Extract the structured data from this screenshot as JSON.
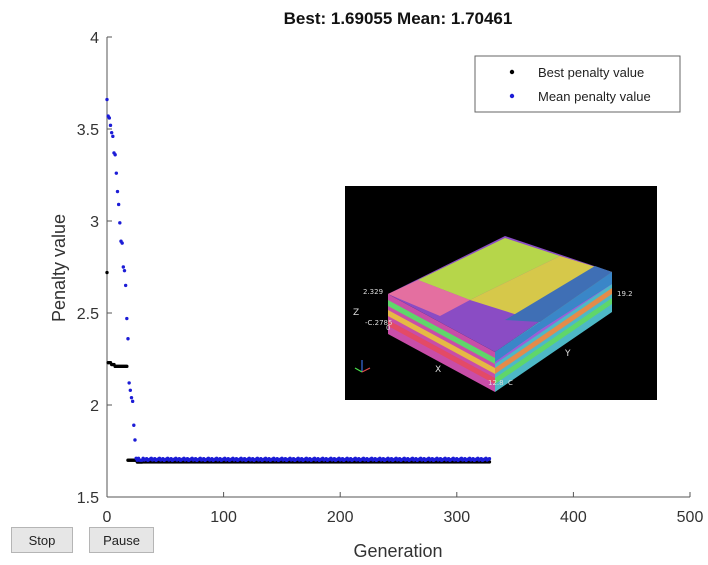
{
  "chart_data": {
    "type": "scatter",
    "title": "Best: 1.69055 Mean: 1.70461",
    "xlabel": "Generation",
    "ylabel": "Penalty value",
    "xlim": [
      0,
      500
    ],
    "ylim": [
      1.5,
      4
    ],
    "xticks": [
      "0",
      "100",
      "200",
      "300",
      "400",
      "500"
    ],
    "yticks": [
      "1.5",
      "2",
      "2.5",
      "3",
      "3.5",
      "4"
    ],
    "legend_position": "top-right",
    "series": [
      {
        "name": "Best penalty value",
        "color": "#000000",
        "points": [
          [
            0,
            2.72
          ],
          [
            1,
            2.23
          ],
          [
            2,
            2.23
          ],
          [
            3,
            2.23
          ],
          [
            4,
            2.22
          ],
          [
            5,
            2.22
          ],
          [
            6,
            2.22
          ],
          [
            7,
            2.21
          ],
          [
            8,
            2.21
          ],
          [
            9,
            2.21
          ],
          [
            10,
            2.21
          ],
          [
            11,
            2.21
          ],
          [
            12,
            2.21
          ],
          [
            13,
            2.21
          ],
          [
            14,
            2.21
          ],
          [
            15,
            2.21
          ],
          [
            16,
            2.21
          ],
          [
            17,
            2.21
          ],
          [
            18,
            1.7
          ],
          [
            19,
            1.7
          ],
          [
            20,
            1.7
          ],
          [
            21,
            1.7
          ],
          [
            22,
            1.7
          ],
          [
            23,
            1.7
          ],
          [
            24,
            1.7
          ],
          [
            25,
            1.7
          ],
          [
            26,
            1.69
          ],
          [
            27,
            1.69
          ],
          [
            28,
            1.69
          ],
          [
            29,
            1.69
          ],
          [
            30,
            1.69
          ]
        ],
        "plateau": {
          "from": 30,
          "to": 328,
          "value": 1.6906
        }
      },
      {
        "name": "Mean penalty value",
        "color": "#1c1cd6",
        "points": [
          [
            0,
            3.66
          ],
          [
            1,
            3.57
          ],
          [
            2,
            3.56
          ],
          [
            3,
            3.52
          ],
          [
            4,
            3.48
          ],
          [
            5,
            3.46
          ],
          [
            6,
            3.37
          ],
          [
            7,
            3.36
          ],
          [
            8,
            3.26
          ],
          [
            9,
            3.16
          ],
          [
            10,
            3.09
          ],
          [
            11,
            2.99
          ],
          [
            12,
            2.89
          ],
          [
            13,
            2.88
          ],
          [
            14,
            2.75
          ],
          [
            15,
            2.73
          ],
          [
            16,
            2.65
          ],
          [
            17,
            2.47
          ],
          [
            18,
            2.36
          ],
          [
            19,
            2.12
          ],
          [
            20,
            2.08
          ],
          [
            21,
            2.04
          ],
          [
            22,
            2.02
          ],
          [
            23,
            1.89
          ],
          [
            24,
            1.81
          ],
          [
            25,
            1.71
          ],
          [
            26,
            1.7
          ],
          [
            27,
            1.71
          ],
          [
            28,
            1.7
          ],
          [
            29,
            1.7
          ],
          [
            30,
            1.7
          ]
        ],
        "plateau": {
          "from": 30,
          "to": 328,
          "value": 1.7046
        }
      }
    ]
  },
  "inset": {
    "labels": {
      "z_top": "2.329",
      "z_axis": "Z",
      "z_bottom": "-C.2785",
      "z_zero": "0",
      "x_axis": "X",
      "x_end": "12.8",
      "c": "C",
      "y_axis": "Y",
      "y_end": "19.2"
    },
    "background": "#000000"
  },
  "controls": {
    "stop_label": "Stop",
    "pause_label": "Pause"
  }
}
